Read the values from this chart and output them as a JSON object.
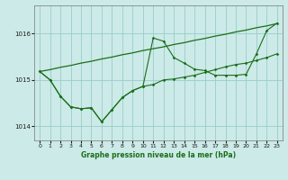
{
  "xlabel": "Graphe pression niveau de la mer (hPa)",
  "xlim": [
    -0.5,
    23.5
  ],
  "ylim": [
    1013.7,
    1016.6
  ],
  "yticks": [
    1014,
    1015,
    1016
  ],
  "xticks": [
    0,
    1,
    2,
    3,
    4,
    5,
    6,
    7,
    8,
    9,
    10,
    11,
    12,
    13,
    14,
    15,
    16,
    17,
    18,
    19,
    20,
    21,
    22,
    23
  ],
  "bg_color": "#cceae7",
  "grid_color": "#99cccc",
  "line_color": "#1a6e1a",
  "s_trend": [
    1015.18,
    1015.22,
    1015.27,
    1015.31,
    1015.36,
    1015.4,
    1015.45,
    1015.49,
    1015.54,
    1015.58,
    1015.63,
    1015.67,
    1015.71,
    1015.76,
    1015.8,
    1015.85,
    1015.89,
    1015.94,
    1015.98,
    1016.03,
    1016.07,
    1016.12,
    1016.16,
    1016.21
  ],
  "s_jagged": [
    1015.18,
    1015.0,
    1014.65,
    1014.42,
    1014.38,
    1014.4,
    1014.1,
    1014.36,
    1014.62,
    1014.77,
    1014.86,
    1015.9,
    1015.83,
    1015.48,
    1015.36,
    1015.23,
    1015.2,
    1015.1,
    1015.1,
    1015.1,
    1015.12,
    1015.56,
    1016.06,
    1016.22
  ],
  "s_smooth": [
    1015.18,
    1015.0,
    1014.65,
    1014.42,
    1014.38,
    1014.4,
    1014.1,
    1014.36,
    1014.62,
    1014.77,
    1014.86,
    1014.9,
    1015.0,
    1015.02,
    1015.06,
    1015.1,
    1015.16,
    1015.22,
    1015.28,
    1015.33,
    1015.36,
    1015.42,
    1015.48,
    1015.56
  ]
}
